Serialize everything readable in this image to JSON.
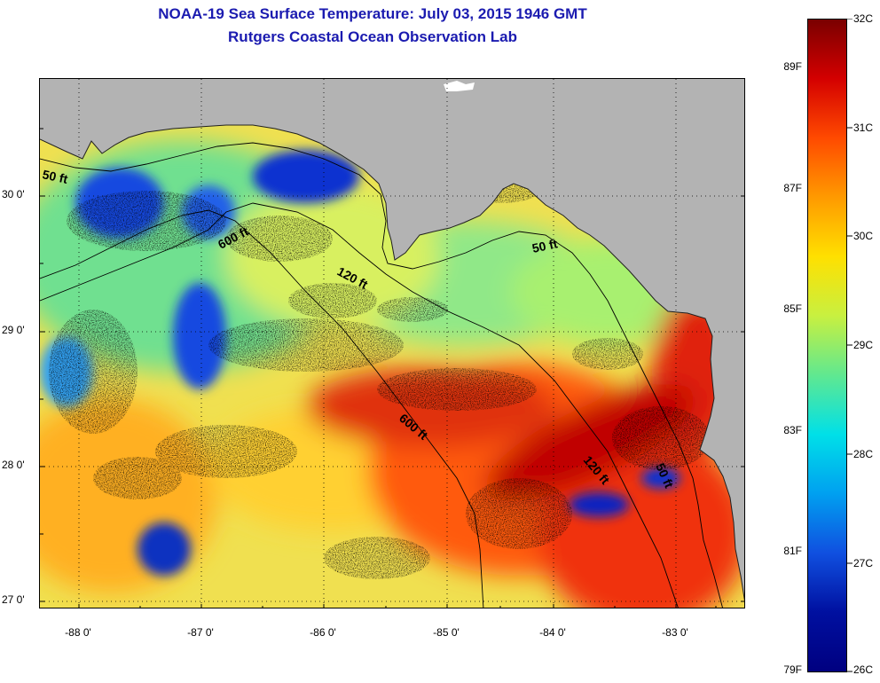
{
  "title_line1": "NOAA-19 Sea Surface Temperature:  July 03, 2015 1946 GMT",
  "title_line2": "Rutgers Coastal Ocean Observation Lab",
  "map": {
    "lon_ticks": [
      "-88 0'",
      "-87 0'",
      "-86 0'",
      "-85 0'",
      "-84 0'",
      "-83 0'"
    ],
    "lat_ticks": [
      "30 0'",
      "29 0'",
      "28 0'",
      "27 0'"
    ],
    "land_color": "#b3b3b3",
    "cloud_color": "#ffffff",
    "contour_labels": [
      "50 ft",
      "600 ft",
      "120 ft",
      "50 ft",
      "600 ft",
      "120 ft",
      "50 ft"
    ]
  },
  "colorbar": {
    "fahrenheit": [
      "89F",
      "87F",
      "85F",
      "83F",
      "81F",
      "79F"
    ],
    "celsius": [
      "32C",
      "31C",
      "30C",
      "29C",
      "28C",
      "27C",
      "26C"
    ],
    "colors": [
      "#7a0000",
      "#d40000",
      "#ff4a00",
      "#ff9a00",
      "#ffe000",
      "#c8f040",
      "#60e890",
      "#00e0e8",
      "#00a0f0",
      "#1050e0",
      "#0010a0",
      "#000080"
    ]
  }
}
